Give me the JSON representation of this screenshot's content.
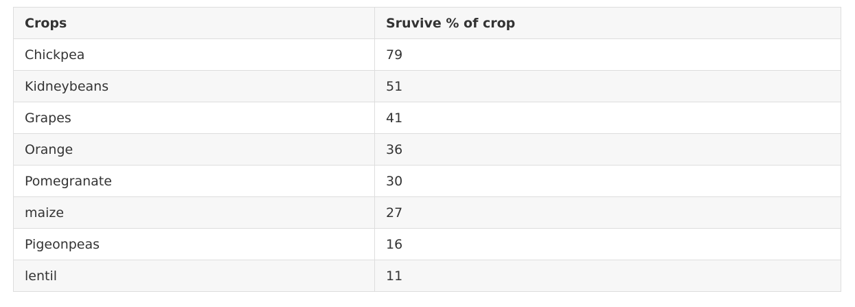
{
  "table": {
    "headers": [
      "Crops",
      "Sruvive % of crop"
    ],
    "rows": [
      [
        "Chickpea",
        "79"
      ],
      [
        "Kidneybeans",
        "51"
      ],
      [
        "Grapes",
        "41"
      ],
      [
        "Orange",
        "36"
      ],
      [
        "Pomegranate",
        "30"
      ],
      [
        "maize",
        "27"
      ],
      [
        "Pigeonpeas",
        "16"
      ],
      [
        "lentil",
        "11"
      ]
    ]
  },
  "colors": {
    "border": "#dddddd",
    "stripe": "#f7f7f7",
    "text": "#333333"
  }
}
